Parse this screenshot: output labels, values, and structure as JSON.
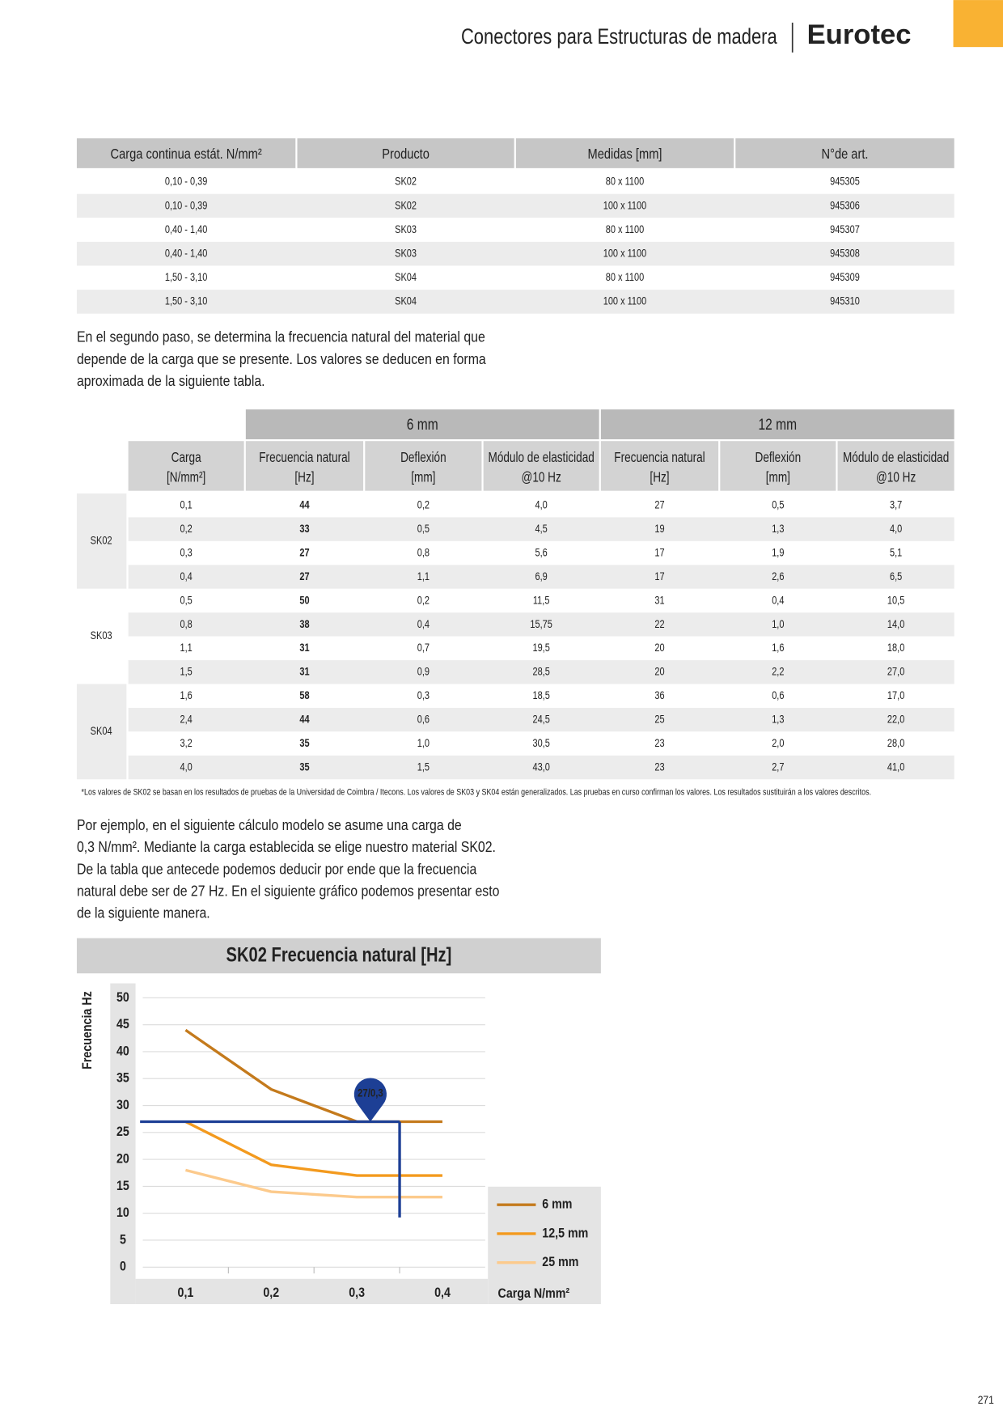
{
  "header": {
    "title": "Conectores para Estructuras de madera",
    "brand": "Eurotec",
    "page_number": "271"
  },
  "table1": {
    "columns": [
      "Carga continua estát. N/mm²",
      "Producto",
      "Medidas [mm]",
      "N°de art."
    ],
    "rows": [
      [
        "0,10 - 0,39",
        "SK02",
        "80 x 1100",
        "945305"
      ],
      [
        "0,10 - 0,39",
        "SK02",
        "100 x 1100",
        "945306"
      ],
      [
        "0,40 - 1,40",
        "SK03",
        "80 x 1100",
        "945307"
      ],
      [
        "0,40 - 1,40",
        "SK03",
        "100 x 1100",
        "945308"
      ],
      [
        "1,50 - 3,10",
        "SK04",
        "80 x 1100",
        "945309"
      ],
      [
        "1,50 - 3,10",
        "SK04",
        "100 x 1100",
        "945310"
      ]
    ]
  },
  "paragraph1": [
    "En el segundo paso, se determina la frecuencia natural del material que",
    "depende de la carga que se presente. Los valores se deducen en forma",
    "aproximada de la siguiente tabla."
  ],
  "table2": {
    "groups": [
      "6 mm",
      "12 mm"
    ],
    "columns": [
      [
        "Carga",
        "[N/mm²]"
      ],
      [
        "Frecuencia natural",
        "[Hz]"
      ],
      [
        "Deflexión",
        "[mm]"
      ],
      [
        "Módulo de elasticidad",
        "@10 Hz"
      ],
      [
        "Frecuencia natural",
        "[Hz]"
      ],
      [
        "Deflexión",
        "[mm]"
      ],
      [
        "Módulo de elasticidad",
        "@10 Hz"
      ]
    ],
    "sections": [
      {
        "product": "SK02",
        "rows": [
          [
            "0,1",
            "44",
            "0,2",
            "4,0",
            "27",
            "0,5",
            "3,7"
          ],
          [
            "0,2",
            "33",
            "0,5",
            "4,5",
            "19",
            "1,3",
            "4,0"
          ],
          [
            "0,3",
            "27",
            "0,8",
            "5,6",
            "17",
            "1,9",
            "5,1"
          ],
          [
            "0,4",
            "27",
            "1,1",
            "6,9",
            "17",
            "2,6",
            "6,5"
          ]
        ]
      },
      {
        "product": "SK03",
        "rows": [
          [
            "0,5",
            "50",
            "0,2",
            "11,5",
            "31",
            "0,4",
            "10,5"
          ],
          [
            "0,8",
            "38",
            "0,4",
            "15,75",
            "22",
            "1,0",
            "14,0"
          ],
          [
            "1,1",
            "31",
            "0,7",
            "19,5",
            "20",
            "1,6",
            "18,0"
          ],
          [
            "1,5",
            "31",
            "0,9",
            "28,5",
            "20",
            "2,2",
            "27,0"
          ]
        ]
      },
      {
        "product": "SK04",
        "rows": [
          [
            "1,6",
            "58",
            "0,3",
            "18,5",
            "36",
            "0,6",
            "17,0"
          ],
          [
            "2,4",
            "44",
            "0,6",
            "24,5",
            "25",
            "1,3",
            "22,0"
          ],
          [
            "3,2",
            "35",
            "1,0",
            "30,5",
            "23",
            "2,0",
            "28,0"
          ],
          [
            "4,0",
            "35",
            "1,5",
            "43,0",
            "23",
            "2,7",
            "41,0"
          ]
        ]
      }
    ],
    "footnote": "*Los valores de SK02 se basan en los resultados de pruebas de la Universidad de Coimbra / Itecons. Los valores de SK03 y SK04 están generalizados. Las pruebas en curso confirman los valores. Los resultados sustituirán a los valores descritos."
  },
  "paragraph2": [
    "Por ejemplo, en el siguiente cálculo modelo se asume una carga de",
    "0,3 N/mm². Mediante la carga establecida se elige nuestro material SK02.",
    "De la tabla que antecede podemos deducir por ende que la frecuencia",
    "natural debe ser de 27 Hz. En el siguiente gráfico podemos presentar esto",
    "de la siguiente manera."
  ],
  "chart_data": {
    "type": "line",
    "title": "SK02 Frecuencia natural [Hz]",
    "y_label": "Frecuencia Hz",
    "x_label": "Carga N/mm²",
    "categories": [
      "0,1",
      "0,2",
      "0,3",
      "0,4"
    ],
    "ylim": [
      0,
      50
    ],
    "yticks": [
      0,
      5,
      10,
      15,
      20,
      25,
      30,
      35,
      40,
      45,
      50
    ],
    "grid": true,
    "series": [
      {
        "name": "6 mm",
        "color": "#c47a1c",
        "values": [
          44,
          33,
          27,
          27
        ]
      },
      {
        "name": "12,5 mm",
        "color": "#f39a1e",
        "values": [
          27,
          19,
          17,
          17
        ]
      },
      {
        "name": "25 mm",
        "color": "#fcca8c",
        "values": [
          18,
          14,
          13,
          13
        ]
      }
    ],
    "annotations": [
      {
        "text": "27/0,3",
        "y": 27,
        "color": "#1d3f95"
      }
    ]
  }
}
